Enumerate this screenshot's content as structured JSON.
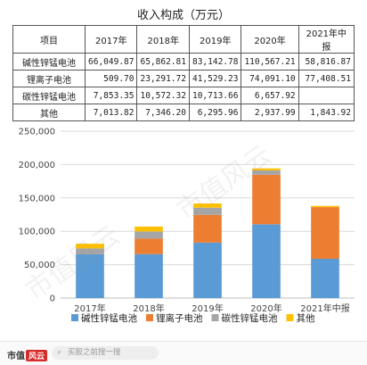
{
  "table": {
    "title": "收入构成（万元）",
    "headers": [
      "项目",
      "2017年",
      "2018年",
      "2019年",
      "2020年",
      "2021年中报"
    ],
    "rows": [
      {
        "label": "碱性锌锰电池",
        "values": [
          "66,049.87",
          "65,862.81",
          "83,142.78",
          "110,567.21",
          "58,816.87"
        ]
      },
      {
        "label": "锂离子电池",
        "values": [
          "509.70",
          "23,291.72",
          "41,529.23",
          "74,091.10",
          "77,408.51"
        ]
      },
      {
        "label": "碳性锌锰电池",
        "values": [
          "7,853.35",
          "10,572.32",
          "10,713.66",
          "6,657.92",
          ""
        ]
      },
      {
        "label": "其他",
        "values": [
          "7,013.82",
          "7,346.20",
          "6,295.96",
          "2,937.99",
          "1,843.92"
        ]
      }
    ]
  },
  "chart_data": {
    "type": "bar",
    "stacked": true,
    "categories": [
      "2017年",
      "2018年",
      "2019年",
      "2020年",
      "2021年中报"
    ],
    "series": [
      {
        "name": "碱性锌锰电池",
        "color": "#5b9bd5",
        "values": [
          66049.87,
          65862.81,
          83142.78,
          110567.21,
          58816.87
        ]
      },
      {
        "name": "锂离子电池",
        "color": "#ed7d31",
        "values": [
          509.7,
          23291.72,
          41529.23,
          74091.1,
          77408.51
        ]
      },
      {
        "name": "碳性锌锰电池",
        "color": "#a5a5a5",
        "values": [
          7853.35,
          10572.32,
          10713.66,
          6657.92,
          0
        ]
      },
      {
        "name": "其他",
        "color": "#ffc000",
        "values": [
          7013.82,
          7346.2,
          6295.96,
          2937.99,
          1843.92
        ]
      }
    ],
    "yticks": [
      "0",
      "50,000",
      "100,000",
      "150,000",
      "200,000",
      "250,000"
    ],
    "ylim": [
      0,
      250000
    ],
    "grid": true,
    "legend_position": "bottom"
  },
  "footer": {
    "logo_text": "市值",
    "logo_badge": "风云",
    "search_placeholder": "买股之前搜一搜"
  },
  "watermark": "市值风云",
  "colors": {
    "grid": "#d9d9d9",
    "axis": "#bfbfbf"
  }
}
